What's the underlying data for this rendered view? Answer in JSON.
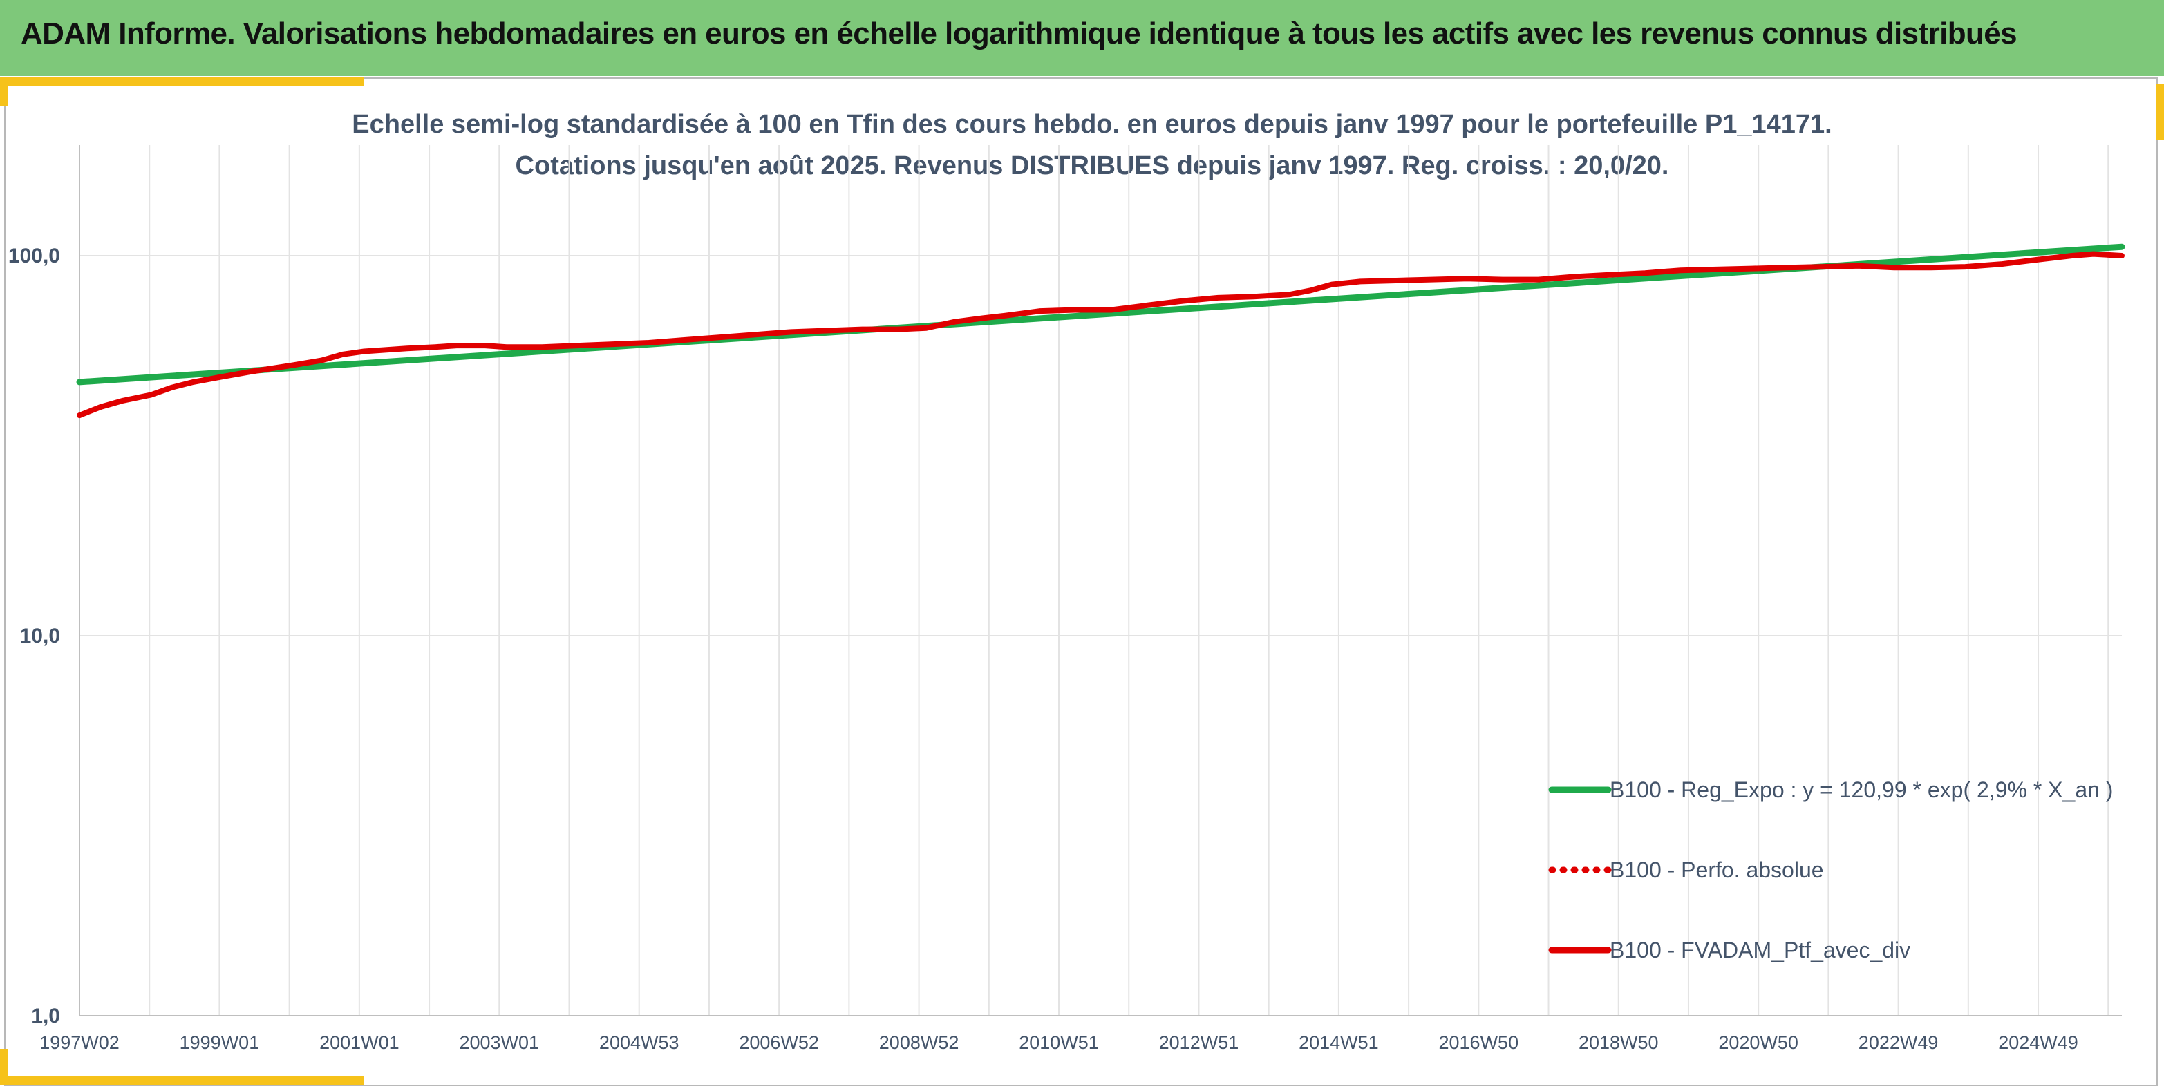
{
  "banner": {
    "title": "ADAM Informe. Valorisations hebdomadaires en euros en échelle logarithmique identique à tous les actifs avec les revenus connus distribués"
  },
  "colors": {
    "banner": "#7ec87a",
    "accent": "#f6c21a",
    "regression": "#1faa4b",
    "portfolio": "#e00000",
    "text": "#44546a",
    "grid": "#e3e3e3"
  },
  "chart_data": {
    "type": "line",
    "title": "Echelle semi-log standardisée à 100 en Tfin des cours hebdo. en euros depuis janv 1997 pour le portefeuille P1_14171.",
    "subtitle": "Cotations jusqu'en août 2025. Revenus DISTRIBUES depuis janv 1997. Reg. croiss. : 20,0/20.",
    "y_scale": "log",
    "ylim": [
      1,
      100
    ],
    "y_ticks": [
      1,
      10,
      100
    ],
    "y_tick_labels": [
      "1,0",
      "10,0",
      "100,0"
    ],
    "x_tick_labels": [
      "1997W02",
      "1999W01",
      "2001W01",
      "2003W01",
      "2004W53",
      "2006W52",
      "2008W52",
      "2010W51",
      "2012W51",
      "2014W51",
      "2016W50",
      "2018W50",
      "2020W50",
      "2022W49",
      "2024W49"
    ],
    "xlim": [
      1997.0,
      2025.7
    ],
    "grid": true,
    "legend_position": "right",
    "series": [
      {
        "name": "B100 - Reg_Expo : y = 120,99 * exp( 2,9% *  X_an )",
        "style": "solid",
        "color": "#1faa4b",
        "x": [
          1997.0,
          2025.7
        ],
        "y": [
          46.5,
          105.5
        ]
      },
      {
        "name": "B100 - Perfo. absolue",
        "style": "dotted",
        "color": "#e00000",
        "x": [],
        "y": []
      },
      {
        "name": "B100 - FVADAM_Ptf_avec_div",
        "style": "solid",
        "color": "#e00000",
        "x": [
          1997.0,
          1997.3,
          1997.6,
          1998.0,
          1998.3,
          1998.6,
          1999.0,
          1999.4,
          1999.7,
          2000.0,
          2000.4,
          2000.7,
          2001.0,
          2001.3,
          2001.6,
          2002.0,
          2002.3,
          2002.7,
          2003.0,
          2003.5,
          2004.0,
          2004.5,
          2005.0,
          2005.5,
          2006.0,
          2006.5,
          2007.0,
          2007.5,
          2008.0,
          2008.5,
          2008.9,
          2009.3,
          2009.7,
          2010.0,
          2010.5,
          2011.0,
          2011.5,
          2012.0,
          2012.5,
          2013.0,
          2013.5,
          2014.0,
          2014.3,
          2014.6,
          2015.0,
          2015.5,
          2016.0,
          2016.5,
          2017.0,
          2017.5,
          2018.0,
          2018.5,
          2019.0,
          2019.5,
          2020.0,
          2020.5,
          2021.0,
          2021.5,
          2022.0,
          2022.5,
          2023.0,
          2023.5,
          2024.0,
          2024.5,
          2025.0,
          2025.3,
          2025.7
        ],
        "y": [
          38.0,
          40.0,
          41.5,
          43.0,
          45.0,
          46.5,
          48.0,
          49.5,
          50.5,
          51.5,
          53.0,
          55.0,
          56.0,
          56.5,
          57.0,
          57.5,
          58.0,
          58.0,
          57.5,
          57.5,
          58.0,
          58.5,
          59.0,
          60.0,
          61.0,
          62.0,
          63.0,
          63.5,
          64.0,
          64.0,
          64.5,
          67.0,
          68.5,
          69.5,
          71.5,
          72.0,
          72.0,
          74.0,
          76.0,
          77.5,
          78.0,
          79.0,
          81.0,
          84.0,
          85.5,
          86.0,
          86.5,
          87.0,
          86.5,
          86.5,
          88.0,
          89.0,
          90.0,
          91.5,
          92.0,
          92.5,
          93.0,
          93.5,
          94.0,
          93.0,
          93.0,
          93.5,
          95.0,
          97.5,
          100.0,
          101.0,
          100.0
        ]
      }
    ]
  }
}
